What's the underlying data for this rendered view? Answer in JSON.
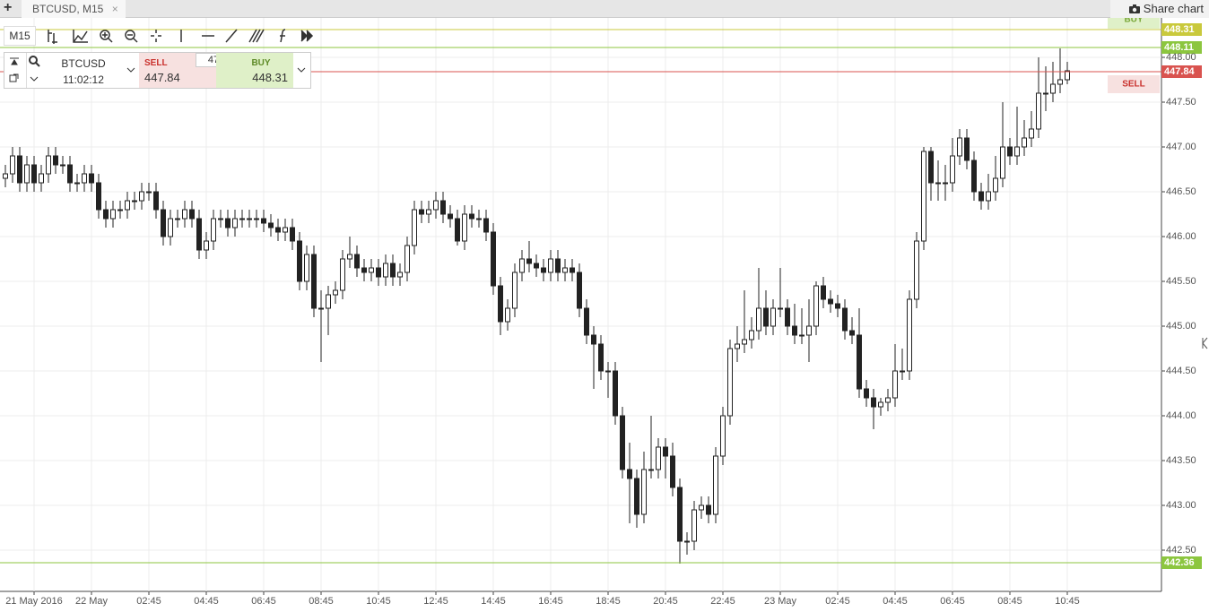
{
  "tab": {
    "title": "BTCUSD, M15",
    "new": "+",
    "close": "×"
  },
  "share": "Share chart",
  "toolbar": {
    "interval": "M15"
  },
  "ticket": {
    "symbol": "BTCUSD",
    "time": "11:02:12",
    "sell_label": "SELL",
    "sell_price": "447.84",
    "spread": "47",
    "buy_label": "BUY",
    "buy_price": "448.31"
  },
  "tags": {
    "buy": "BUY",
    "sell": "SELL"
  },
  "chart_data": {
    "type": "candlestick",
    "up_color": "#ffffff",
    "down_color": "#222222",
    "grid": true,
    "ylim": [
      442.04,
      448.44
    ],
    "yticks": [
      {
        "value": 442.5,
        "label": "442.50"
      },
      {
        "value": 443,
        "label": "443.00"
      },
      {
        "value": 443.5,
        "label": "443.50"
      },
      {
        "value": 444,
        "label": "444.00"
      },
      {
        "value": 444.5,
        "label": "444.50"
      },
      {
        "value": 445,
        "label": "445.00"
      },
      {
        "value": 445.5,
        "label": "445.50"
      },
      {
        "value": 446,
        "label": "446.00"
      },
      {
        "value": 446.5,
        "label": "446.50"
      },
      {
        "value": 447,
        "label": "447.00"
      },
      {
        "value": 447.5,
        "label": "447.50"
      },
      {
        "value": 448,
        "label": "448.00"
      }
    ],
    "levels": [
      {
        "value": 448.31,
        "color": "#c9c93c"
      },
      {
        "value": 448.11,
        "color": "#8cc63f"
      },
      {
        "value": 447.84,
        "color": "#d9534f"
      },
      {
        "value": 442.36,
        "color": "#8cc63f"
      }
    ],
    "categories": [
      null,
      null,
      null,
      null,
      "21 May 2016",
      null,
      null,
      null,
      null,
      null,
      null,
      null,
      "22 May",
      null,
      null,
      null,
      null,
      null,
      null,
      null,
      "02:45",
      null,
      null,
      null,
      null,
      null,
      null,
      null,
      "04:45",
      null,
      null,
      null,
      null,
      null,
      null,
      null,
      "06:45",
      null,
      null,
      null,
      null,
      null,
      null,
      null,
      "08:45",
      null,
      null,
      null,
      null,
      null,
      null,
      null,
      "10:45",
      null,
      null,
      null,
      null,
      null,
      null,
      null,
      "12:45",
      null,
      null,
      null,
      null,
      null,
      null,
      null,
      "14:45",
      null,
      null,
      null,
      null,
      null,
      null,
      null,
      "16:45",
      null,
      null,
      null,
      null,
      null,
      null,
      null,
      "18:45",
      null,
      null,
      null,
      null,
      null,
      null,
      null,
      "20:45",
      null,
      null,
      null,
      null,
      null,
      null,
      null,
      "22:45",
      null,
      null,
      null,
      null,
      null,
      null,
      null,
      "23 May",
      null,
      null,
      null,
      null,
      null,
      null,
      null,
      "02:45",
      null,
      null,
      null,
      null,
      null,
      null,
      null,
      "04:45",
      null,
      null,
      null,
      null,
      null,
      null,
      null,
      "06:45",
      null,
      null,
      null,
      null,
      null,
      null,
      null,
      "08:45",
      null,
      null,
      null,
      null,
      null,
      null,
      null,
      "10:45"
    ],
    "open": [
      446.65,
      446.7,
      446.9,
      446.6,
      446.8,
      446.6,
      446.7,
      446.9,
      446.8,
      446.8,
      446.6,
      446.6,
      446.7,
      446.6,
      446.3,
      446.2,
      446.3,
      446.3,
      446.4,
      446.4,
      446.5,
      446.5,
      446.3,
      446.0,
      446.2,
      446.2,
      446.3,
      446.2,
      445.85,
      445.95,
      446.2,
      446.2,
      446.1,
      446.2,
      446.2,
      446.2,
      446.2,
      446.15,
      446.1,
      446.05,
      446.1,
      445.95,
      445.5,
      445.8,
      445.2,
      445.2,
      445.35,
      445.4,
      445.75,
      445.8,
      445.65,
      445.6,
      445.65,
      445.55,
      445.7,
      445.55,
      445.6,
      445.9,
      446.3,
      446.25,
      446.3,
      446.4,
      446.25,
      446.2,
      445.95,
      446.25,
      446.2,
      446.2,
      446.05,
      445.45,
      445.05,
      445.2,
      445.6,
      445.75,
      445.7,
      445.65,
      445.6,
      445.75,
      445.6,
      445.65,
      445.6,
      445.2,
      444.9,
      444.8,
      444.5,
      444.5,
      444.0,
      443.4,
      443.3,
      442.9,
      443.4,
      443.4,
      443.65,
      443.55,
      443.2,
      442.6,
      442.6,
      442.95,
      443.0,
      442.9,
      443.55,
      444.0,
      444.75,
      444.8,
      444.85,
      444.95,
      445.2,
      445.0,
      445.2,
      445.2,
      445.0,
      444.9,
      444.9,
      445.0,
      445.45,
      445.3,
      445.25,
      445.2,
      444.95,
      444.9,
      444.3,
      444.2,
      444.1,
      444.15,
      444.2,
      444.5,
      444.5,
      445.3,
      445.95,
      446.95,
      446.6,
      446.6,
      446.6,
      446.9,
      447.1,
      446.85,
      446.5,
      446.4,
      446.5,
      446.65,
      447.0,
      446.9,
      447.0,
      447.1,
      447.2,
      447.6,
      447.6,
      447.7,
      447.75
    ],
    "high": [
      446.8,
      447.0,
      447.0,
      446.9,
      446.9,
      446.8,
      447.0,
      447.0,
      446.9,
      446.9,
      446.7,
      446.8,
      446.8,
      446.7,
      446.4,
      446.4,
      446.4,
      446.5,
      446.5,
      446.6,
      446.6,
      446.6,
      446.4,
      446.3,
      446.3,
      446.4,
      446.4,
      446.3,
      446.05,
      446.3,
      446.3,
      446.3,
      446.3,
      446.3,
      446.3,
      446.3,
      446.3,
      446.25,
      446.2,
      446.2,
      446.2,
      446.05,
      445.9,
      445.9,
      445.4,
      445.45,
      445.5,
      445.85,
      446.0,
      445.9,
      445.75,
      445.75,
      445.75,
      445.8,
      445.8,
      445.7,
      446.0,
      446.4,
      446.4,
      446.4,
      446.5,
      446.5,
      446.35,
      446.3,
      446.35,
      446.35,
      446.3,
      446.3,
      446.15,
      445.55,
      445.3,
      445.7,
      445.85,
      445.95,
      445.8,
      445.75,
      445.85,
      445.85,
      445.75,
      445.75,
      445.7,
      445.3,
      445.0,
      444.9,
      444.6,
      444.6,
      444.1,
      443.7,
      443.4,
      443.6,
      444.0,
      443.75,
      443.75,
      443.7,
      443.3,
      442.7,
      443.05,
      443.1,
      443.1,
      443.65,
      444.1,
      444.85,
      445.0,
      445.4,
      445.1,
      445.65,
      445.4,
      445.3,
      445.65,
      445.3,
      445.25,
      445.2,
      445.3,
      445.5,
      445.55,
      445.4,
      445.35,
      445.3,
      445.1,
      445.2,
      444.4,
      444.3,
      444.2,
      444.3,
      444.8,
      444.75,
      445.4,
      446.05,
      447.0,
      447.0,
      446.85,
      446.8,
      447.1,
      447.2,
      447.2,
      446.95,
      446.6,
      446.7,
      446.9,
      447.5,
      447.1,
      447.45,
      447.3,
      447.4,
      448.0,
      447.9,
      447.95,
      448.1,
      447.95
    ],
    "low": [
      446.55,
      446.6,
      446.5,
      446.5,
      446.5,
      446.5,
      446.6,
      446.7,
      446.7,
      446.5,
      446.5,
      446.5,
      446.5,
      446.2,
      446.1,
      446.1,
      446.2,
      446.2,
      446.3,
      446.3,
      446.4,
      446.2,
      445.9,
      445.9,
      446.1,
      446.1,
      446.1,
      445.75,
      445.75,
      445.85,
      446.1,
      446.0,
      446.0,
      446.1,
      446.1,
      446.1,
      446.05,
      446.0,
      445.95,
      445.95,
      445.85,
      445.4,
      445.4,
      445.1,
      444.6,
      444.9,
      445.25,
      445.3,
      445.65,
      445.55,
      445.5,
      445.5,
      445.45,
      445.45,
      445.45,
      445.45,
      445.5,
      445.8,
      446.15,
      446.15,
      446.2,
      446.15,
      446.1,
      445.9,
      445.85,
      446.1,
      446.1,
      445.95,
      445.35,
      444.9,
      444.95,
      445.1,
      445.5,
      445.6,
      445.55,
      445.5,
      445.5,
      445.5,
      445.5,
      445.5,
      445.1,
      444.8,
      444.3,
      444.4,
      444.2,
      443.9,
      443.3,
      442.8,
      442.75,
      442.8,
      443.3,
      443.3,
      443.3,
      443.1,
      442.35,
      442.45,
      442.5,
      442.85,
      442.8,
      442.8,
      443.45,
      443.9,
      444.6,
      444.7,
      444.75,
      444.85,
      444.9,
      444.9,
      445.1,
      444.9,
      444.8,
      444.8,
      444.6,
      444.9,
      445.2,
      445.15,
      445.1,
      444.85,
      444.8,
      444.2,
      444.1,
      443.85,
      444.0,
      444.05,
      444.1,
      444.4,
      444.4,
      445.2,
      445.85,
      446.4,
      446.4,
      446.4,
      446.5,
      446.8,
      446.75,
      446.4,
      446.3,
      446.3,
      446.4,
      446.55,
      446.8,
      446.8,
      446.9,
      447.0,
      447.1,
      447.4,
      447.5,
      447.6,
      447.7
    ],
    "close": [
      446.7,
      446.9,
      446.6,
      446.8,
      446.6,
      446.7,
      446.9,
      446.8,
      446.8,
      446.6,
      446.6,
      446.7,
      446.6,
      446.3,
      446.2,
      446.3,
      446.3,
      446.4,
      446.4,
      446.5,
      446.5,
      446.3,
      446.0,
      446.2,
      446.2,
      446.3,
      446.2,
      445.85,
      445.95,
      446.2,
      446.2,
      446.1,
      446.2,
      446.2,
      446.2,
      446.2,
      446.15,
      446.1,
      446.05,
      446.1,
      445.95,
      445.5,
      445.8,
      445.2,
      445.2,
      445.35,
      445.4,
      445.75,
      445.8,
      445.65,
      445.6,
      445.65,
      445.55,
      445.7,
      445.55,
      445.6,
      445.9,
      446.3,
      446.25,
      446.3,
      446.4,
      446.25,
      446.2,
      445.95,
      446.25,
      446.2,
      446.2,
      446.05,
      445.45,
      445.05,
      445.2,
      445.6,
      445.75,
      445.7,
      445.65,
      445.6,
      445.75,
      445.6,
      445.65,
      445.6,
      445.2,
      444.9,
      444.8,
      444.5,
      444.5,
      444.0,
      443.4,
      443.3,
      442.9,
      443.4,
      443.4,
      443.65,
      443.55,
      443.2,
      442.6,
      442.6,
      442.95,
      443.0,
      442.9,
      443.55,
      444.0,
      444.75,
      444.8,
      444.85,
      444.95,
      445.2,
      445.0,
      445.2,
      445.2,
      445.0,
      444.9,
      444.9,
      445.0,
      445.45,
      445.3,
      445.25,
      445.2,
      444.95,
      444.9,
      444.3,
      444.2,
      444.1,
      444.15,
      444.2,
      444.5,
      444.5,
      445.3,
      445.95,
      446.95,
      446.6,
      446.6,
      446.6,
      446.9,
      447.1,
      446.85,
      446.5,
      446.4,
      446.5,
      446.65,
      447.0,
      446.9,
      447.0,
      447.1,
      447.2,
      447.6,
      447.6,
      447.7,
      447.75,
      447.85
    ]
  }
}
